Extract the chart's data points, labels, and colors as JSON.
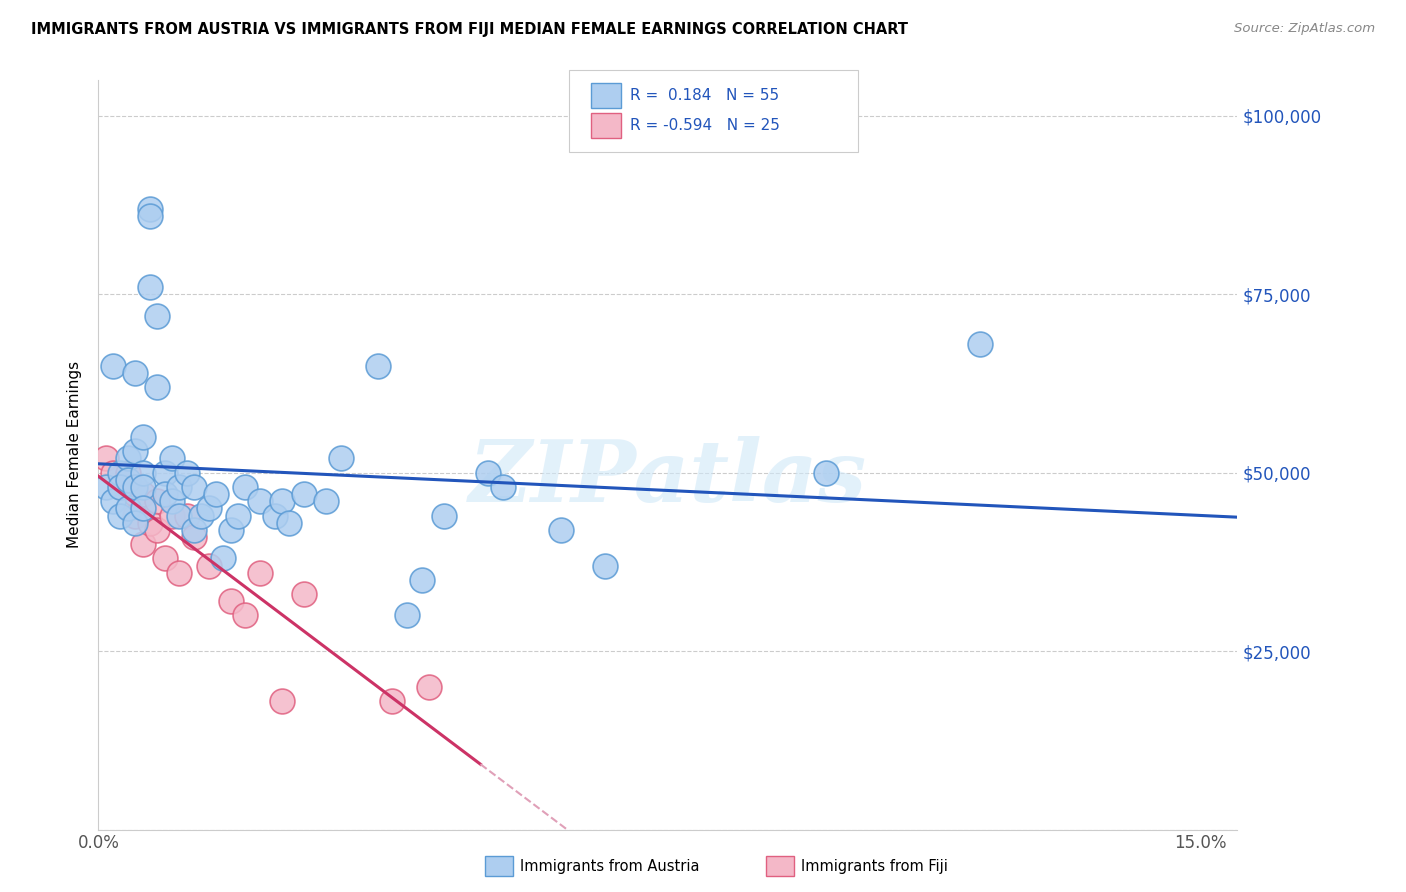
{
  "title": "IMMIGRANTS FROM AUSTRIA VS IMMIGRANTS FROM FIJI MEDIAN FEMALE EARNINGS CORRELATION CHART",
  "source": "Source: ZipAtlas.com",
  "ylabel": "Median Female Earnings",
  "xlim": [
    0.0,
    0.155
  ],
  "ylim": [
    0,
    105000
  ],
  "xticks": [
    0.0,
    0.03,
    0.06,
    0.09,
    0.12,
    0.15
  ],
  "xticklabels": [
    "0.0%",
    "",
    "",
    "",
    "",
    "15.0%"
  ],
  "yticks": [
    0,
    25000,
    50000,
    75000,
    100000
  ],
  "yticklabels": [
    "",
    "$25,000",
    "$50,000",
    "$75,000",
    "$100,000"
  ],
  "austria_color": "#aecef0",
  "austria_edge_color": "#5b9bd5",
  "fiji_color": "#f4b8c8",
  "fiji_edge_color": "#e06080",
  "austria_line_color": "#2255bb",
  "fiji_line_color": "#cc3366",
  "fiji_dash_color": "#e0a0b8",
  "austria_R": 0.184,
  "austria_N": 55,
  "fiji_R": -0.594,
  "fiji_N": 25,
  "legend_R_color": "#2255bb",
  "watermark_text": "ZIPatlas",
  "austria_x": [
    0.001,
    0.002,
    0.002,
    0.003,
    0.003,
    0.003,
    0.004,
    0.004,
    0.004,
    0.005,
    0.005,
    0.005,
    0.005,
    0.006,
    0.006,
    0.006,
    0.006,
    0.007,
    0.007,
    0.007,
    0.008,
    0.008,
    0.009,
    0.009,
    0.01,
    0.01,
    0.011,
    0.011,
    0.012,
    0.013,
    0.013,
    0.014,
    0.015,
    0.016,
    0.017,
    0.018,
    0.019,
    0.02,
    0.022,
    0.024,
    0.025,
    0.026,
    0.028,
    0.031,
    0.033,
    0.038,
    0.042,
    0.044,
    0.047,
    0.053,
    0.055,
    0.063,
    0.069,
    0.099,
    0.12
  ],
  "austria_y": [
    48000,
    65000,
    46000,
    50000,
    48000,
    44000,
    52000,
    49000,
    45000,
    64000,
    53000,
    48000,
    43000,
    55000,
    50000,
    48000,
    45000,
    87000,
    86000,
    76000,
    72000,
    62000,
    50000,
    47000,
    52000,
    46000,
    48000,
    44000,
    50000,
    48000,
    42000,
    44000,
    45000,
    47000,
    38000,
    42000,
    44000,
    48000,
    46000,
    44000,
    46000,
    43000,
    47000,
    46000,
    52000,
    65000,
    30000,
    35000,
    44000,
    50000,
    48000,
    42000,
    37000,
    50000,
    68000
  ],
  "fiji_x": [
    0.001,
    0.002,
    0.003,
    0.004,
    0.004,
    0.005,
    0.005,
    0.006,
    0.006,
    0.007,
    0.008,
    0.008,
    0.009,
    0.01,
    0.011,
    0.012,
    0.013,
    0.015,
    0.018,
    0.02,
    0.022,
    0.025,
    0.028,
    0.04,
    0.045
  ],
  "fiji_y": [
    52000,
    50000,
    48000,
    50000,
    48000,
    47000,
    44000,
    47000,
    40000,
    43000,
    46000,
    42000,
    38000,
    44000,
    36000,
    44000,
    41000,
    37000,
    32000,
    30000,
    36000,
    18000,
    33000,
    18000,
    20000
  ]
}
